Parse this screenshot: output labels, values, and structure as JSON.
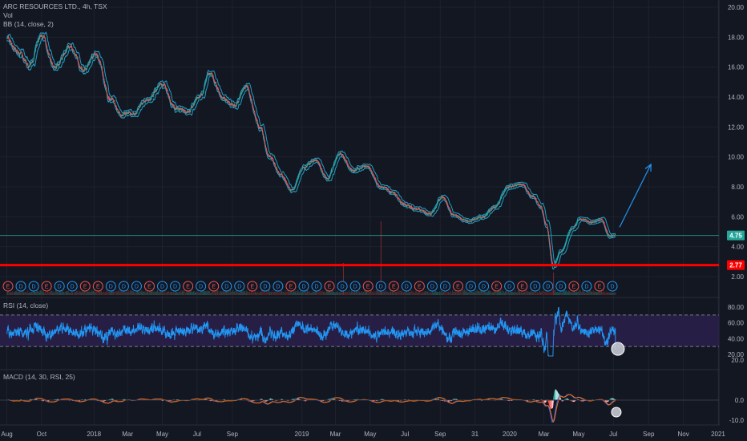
{
  "header": {
    "symbol_line": "ARC RESOURCES LTD., 4h, TSX",
    "vol_label": "Vol",
    "bb_label": "BB (14, close, 2)"
  },
  "rsi_panel": {
    "label": "RSI (14, close)"
  },
  "macd_panel": {
    "label": "MACD (14, 30, RSI, 25)"
  },
  "colors": {
    "background": "#131722",
    "grid": "#1e222d",
    "bb": "#1ea0c8",
    "candle_up": "#26a69a",
    "candle_down": "#ef5350",
    "support": "#ff0000",
    "price_line": "#26a69a",
    "rsi_line": "#2196f3",
    "rsi_band": "#2a1f4a",
    "macd_line": "#2962ff",
    "signal_line": "#ff6d00",
    "arrow": "#2196f3"
  },
  "badges": {
    "last_price": "4.75",
    "support_level": "2.77"
  },
  "events": [
    "E",
    "D",
    "D",
    "E",
    "D",
    "D",
    "E",
    "E",
    "D",
    "D",
    "D",
    "E",
    "D",
    "D",
    "E",
    "D",
    "E",
    "D",
    "D",
    "E",
    "D",
    "D",
    "E",
    "D",
    "D",
    "E",
    "D",
    "D",
    "E",
    "D",
    "E",
    "D",
    "E",
    "D",
    "D",
    "E",
    "D",
    "D",
    "E",
    "D",
    "E",
    "D",
    "D",
    "D",
    "E",
    "D",
    "E",
    "D"
  ],
  "chart_data": [
    {
      "type": "line",
      "name": "price",
      "title": "ARC RESOURCES LTD., 4h, TSX",
      "x_axis_labels": [
        "Aug",
        "Oct",
        "2018",
        "Mar",
        "May",
        "Jul",
        "Sep",
        "2019",
        "Mar",
        "May",
        "Jul",
        "Sep",
        "31",
        "2020",
        "Mar",
        "May",
        "Jul",
        "Sep",
        "Nov",
        "2021"
      ],
      "y_ticks": [
        "20.00",
        "18.00",
        "16.00",
        "14.00",
        "12.00",
        "10.00",
        "8.00",
        "6.00",
        "4.00",
        "2.00"
      ],
      "ylim": [
        2,
        20
      ],
      "keypoints": [
        {
          "x": "2017-08-01",
          "y": 17.9
        },
        {
          "x": "2017-08-20",
          "y": 17.0
        },
        {
          "x": "2017-09-10",
          "y": 16.1
        },
        {
          "x": "2017-10-01",
          "y": 18.1
        },
        {
          "x": "2017-10-25",
          "y": 16.0
        },
        {
          "x": "2017-11-20",
          "y": 17.3
        },
        {
          "x": "2017-12-15",
          "y": 15.8
        },
        {
          "x": "2018-01-05",
          "y": 16.8
        },
        {
          "x": "2018-01-30",
          "y": 13.9
        },
        {
          "x": "2018-02-20",
          "y": 12.8
        },
        {
          "x": "2018-03-10",
          "y": 12.9
        },
        {
          "x": "2018-04-05",
          "y": 13.8
        },
        {
          "x": "2018-05-01",
          "y": 14.9
        },
        {
          "x": "2018-05-25",
          "y": 13.2
        },
        {
          "x": "2018-06-15",
          "y": 13.0
        },
        {
          "x": "2018-07-05",
          "y": 14.0
        },
        {
          "x": "2018-07-25",
          "y": 15.6
        },
        {
          "x": "2018-08-15",
          "y": 13.9
        },
        {
          "x": "2018-09-05",
          "y": 13.4
        },
        {
          "x": "2018-09-25",
          "y": 14.7
        },
        {
          "x": "2018-10-20",
          "y": 12.0
        },
        {
          "x": "2018-11-05",
          "y": 10.0
        },
        {
          "x": "2018-11-25",
          "y": 8.8
        },
        {
          "x": "2018-12-15",
          "y": 7.8
        },
        {
          "x": "2019-01-05",
          "y": 9.3
        },
        {
          "x": "2019-01-25",
          "y": 9.8
        },
        {
          "x": "2019-02-15",
          "y": 8.6
        },
        {
          "x": "2019-03-10",
          "y": 10.2
        },
        {
          "x": "2019-04-01",
          "y": 9.1
        },
        {
          "x": "2019-04-25",
          "y": 9.4
        },
        {
          "x": "2019-05-20",
          "y": 8.0
        },
        {
          "x": "2019-06-10",
          "y": 7.6
        },
        {
          "x": "2019-07-01",
          "y": 6.8
        },
        {
          "x": "2019-07-25",
          "y": 6.5
        },
        {
          "x": "2019-08-15",
          "y": 6.2
        },
        {
          "x": "2019-09-05",
          "y": 7.3
        },
        {
          "x": "2019-09-25",
          "y": 6.1
        },
        {
          "x": "2019-10-20",
          "y": 5.7
        },
        {
          "x": "2019-11-15",
          "y": 6.0
        },
        {
          "x": "2019-12-05",
          "y": 6.6
        },
        {
          "x": "2019-12-31",
          "y": 8.0
        },
        {
          "x": "2020-01-20",
          "y": 8.2
        },
        {
          "x": "2020-02-10",
          "y": 7.4
        },
        {
          "x": "2020-02-25",
          "y": 6.7
        },
        {
          "x": "2020-03-05",
          "y": 5.5
        },
        {
          "x": "2020-03-18",
          "y": 2.8
        },
        {
          "x": "2020-04-01",
          "y": 3.7
        },
        {
          "x": "2020-04-20",
          "y": 5.2
        },
        {
          "x": "2020-05-05",
          "y": 5.9
        },
        {
          "x": "2020-05-25",
          "y": 5.6
        },
        {
          "x": "2020-06-10",
          "y": 5.8
        },
        {
          "x": "2020-06-25",
          "y": 4.7
        },
        {
          "x": "2020-07-05",
          "y": 4.75
        }
      ],
      "last_value": 4.75,
      "support_level": 2.77,
      "projection_arrow": {
        "from": {
          "x": "2020-07-12",
          "y": 5.3
        },
        "to": {
          "x": "2020-09-05",
          "y": 9.5
        }
      }
    },
    {
      "type": "line",
      "name": "RSI",
      "title": "RSI (14, close)",
      "y_ticks": [
        "80.00",
        "60.00",
        "40.00",
        "20.00"
      ],
      "ylim": [
        15,
        85
      ],
      "bands": [
        30,
        70
      ],
      "last_value": 27
    },
    {
      "type": "bar",
      "name": "MACD",
      "title": "MACD (14, 30, RSI, 25)",
      "y_ticks": [
        "20.0",
        "0.0",
        "-10.0"
      ],
      "ylim": [
        -12,
        22
      ]
    }
  ]
}
